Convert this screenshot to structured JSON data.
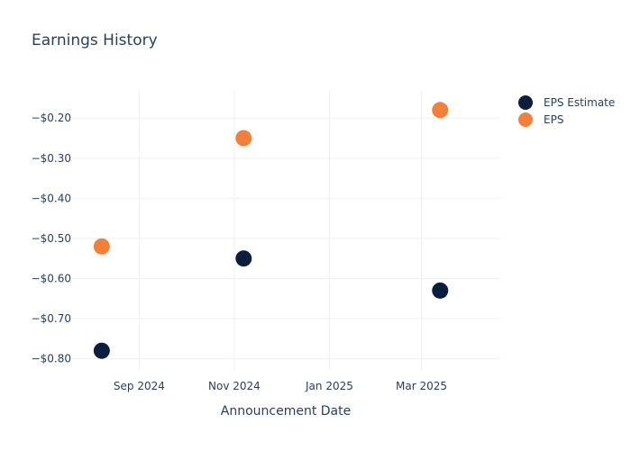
{
  "chart_data": {
    "type": "scatter",
    "title": "Earnings History",
    "xlabel": "Announcement Date",
    "ylabel": "",
    "x_ticks": [
      {
        "date": "2024-09-01",
        "label": "Sep 2024"
      },
      {
        "date": "2024-11-01",
        "label": "Nov 2024"
      },
      {
        "date": "2025-01-01",
        "label": "Jan 2025"
      },
      {
        "date": "2025-03-01",
        "label": "Mar 2025"
      }
    ],
    "y_ticks": [
      {
        "value": -0.2,
        "label": "−$0.20"
      },
      {
        "value": -0.3,
        "label": "−$0.30"
      },
      {
        "value": -0.4,
        "label": "−$0.40"
      },
      {
        "value": -0.5,
        "label": "−$0.50"
      },
      {
        "value": -0.6,
        "label": "−$0.60"
      },
      {
        "value": -0.7,
        "label": "−$0.70"
      },
      {
        "value": -0.8,
        "label": "−$0.80"
      }
    ],
    "xlim": [
      "2024-07-20",
      "2025-04-20"
    ],
    "ylim": [
      -0.83,
      -0.13
    ],
    "grid": true,
    "legend_position": "top-right",
    "series": [
      {
        "name": "EPS Estimate",
        "color": "#0c1e3e",
        "points": [
          {
            "x": "2024-08-08",
            "y": -0.78
          },
          {
            "x": "2024-11-07",
            "y": -0.55
          },
          {
            "x": "2025-03-13",
            "y": -0.63
          }
        ]
      },
      {
        "name": "EPS",
        "color": "#f2803a",
        "points": [
          {
            "x": "2024-08-08",
            "y": -0.52
          },
          {
            "x": "2024-11-07",
            "y": -0.25
          },
          {
            "x": "2025-03-13",
            "y": -0.18
          }
        ]
      }
    ]
  }
}
